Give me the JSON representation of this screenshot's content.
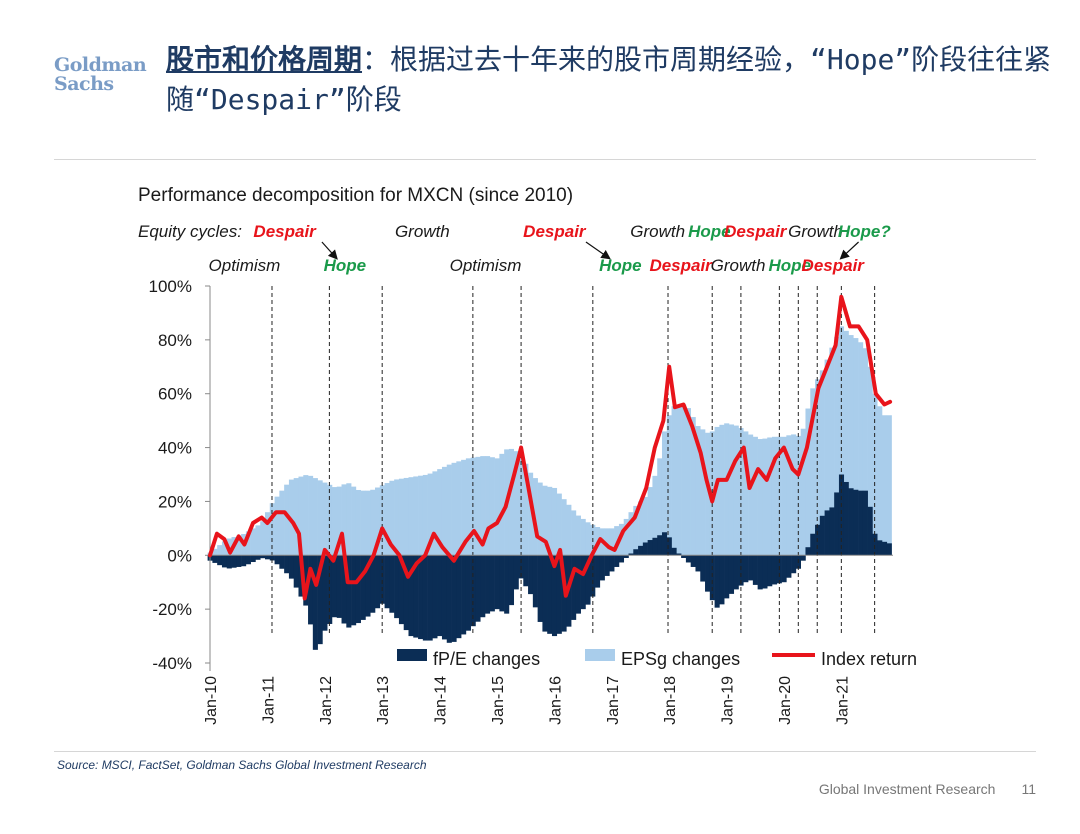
{
  "logo": {
    "line1": "Goldman",
    "line2": "Sachs"
  },
  "slide": {
    "title_highlight": "股市和价格周期",
    "title_rest": "：根据过去十年来的股市周期经验，“Hope”阶段往往紧随“Despair”阶段",
    "source": "Source: MSCI, FactSet, Goldman Sachs Global Investment Research",
    "footer_text": "Global Investment Research",
    "page_number": "11"
  },
  "colors": {
    "fpe": "#0b2d55",
    "eps": "#a9cdeb",
    "index": "#e8141b",
    "despair": "#e8141b",
    "hope": "#1a9a4a",
    "text": "#1a1a1a"
  },
  "chart_data": {
    "type": "bar",
    "title": "Performance decomposition for MXCN (since 2010)",
    "ylim": [
      -40,
      100
    ],
    "ytick_labels": [
      "100%",
      "80%",
      "60%",
      "40%",
      "20%",
      "0%",
      "-20%",
      "-40%"
    ],
    "x_start": 2010.0,
    "x_end": 2021.9,
    "xtick_labels": [
      "Jan-10",
      "Jan-11",
      "Jan-12",
      "Jan-13",
      "Jan-14",
      "Jan-15",
      "Jan-16",
      "Jan-17",
      "Jan-18",
      "Jan-19",
      "Jan-20",
      "Jan-21"
    ],
    "legend": [
      "fP/E changes",
      "EPSg changes",
      "Index return"
    ],
    "cycle_prefix": "Equity cycles:",
    "cycles_row1": [
      {
        "label": "Despair",
        "phase": "despair",
        "t": 2011.3
      },
      {
        "label": "Growth",
        "phase": "growth",
        "t": 2013.7
      },
      {
        "label": "Despair",
        "phase": "despair",
        "t": 2016.0
      },
      {
        "label": "Growth",
        "phase": "growth",
        "t": 2017.8
      },
      {
        "label": "Hope",
        "phase": "hope",
        "t": 2018.7
      },
      {
        "label": "Despair",
        "phase": "despair",
        "t": 2019.5
      },
      {
        "label": "Growth",
        "phase": "growth",
        "t": 2020.55
      },
      {
        "label": "Hope?",
        "phase": "hope",
        "t": 2021.4
      }
    ],
    "cycles_row2": [
      {
        "label": "Optimism",
        "phase": "growth",
        "t": 2010.6
      },
      {
        "label": "Hope",
        "phase": "hope",
        "t": 2012.35
      },
      {
        "label": "Optimism",
        "phase": "growth",
        "t": 2014.8
      },
      {
        "label": "Hope",
        "phase": "hope",
        "t": 2017.15
      },
      {
        "label": "Despair",
        "phase": "despair",
        "t": 2018.2
      },
      {
        "label": "Growth",
        "phase": "growth",
        "t": 2019.2
      },
      {
        "label": "Hope",
        "phase": "hope",
        "t": 2020.1
      },
      {
        "label": "Despair",
        "phase": "despair",
        "t": 2020.85
      }
    ],
    "cycle_arrows": [
      {
        "from": [
          2011.95,
          1
        ],
        "to": [
          2012.2,
          2
        ]
      },
      {
        "from": [
          2016.55,
          1
        ],
        "to": [
          2016.95,
          2
        ]
      },
      {
        "from": [
          2021.3,
          1
        ],
        "to": [
          2021.0,
          2
        ]
      }
    ],
    "cycle_dividers": [
      2011.08,
      2012.08,
      2013.0,
      2014.58,
      2015.42,
      2016.67,
      2017.98,
      2018.75,
      2019.25,
      2019.92,
      2020.25,
      2020.58,
      2021.0,
      2021.58
    ],
    "fpe_changes": [
      [
        2010.0,
        -2
      ],
      [
        2010.3,
        -5
      ],
      [
        2010.6,
        -4
      ],
      [
        2010.9,
        -1
      ],
      [
        2011.1,
        -2
      ],
      [
        2011.4,
        -8
      ],
      [
        2011.7,
        -20
      ],
      [
        2011.85,
        -37
      ],
      [
        2012.0,
        -28
      ],
      [
        2012.2,
        -22
      ],
      [
        2012.4,
        -27
      ],
      [
        2012.6,
        -25
      ],
      [
        2012.8,
        -22
      ],
      [
        2013.0,
        -18
      ],
      [
        2013.2,
        -22
      ],
      [
        2013.5,
        -30
      ],
      [
        2013.8,
        -32
      ],
      [
        2014.0,
        -30
      ],
      [
        2014.2,
        -33
      ],
      [
        2014.5,
        -28
      ],
      [
        2014.8,
        -22
      ],
      [
        2015.0,
        -20
      ],
      [
        2015.2,
        -22
      ],
      [
        2015.4,
        -8
      ],
      [
        2015.6,
        -15
      ],
      [
        2015.8,
        -28
      ],
      [
        2016.0,
        -30
      ],
      [
        2016.2,
        -28
      ],
      [
        2016.4,
        -22
      ],
      [
        2016.6,
        -18
      ],
      [
        2016.8,
        -10
      ],
      [
        2017.0,
        -6
      ],
      [
        2017.2,
        -2
      ],
      [
        2017.4,
        2
      ],
      [
        2017.6,
        5
      ],
      [
        2017.8,
        7
      ],
      [
        2017.95,
        9
      ],
      [
        2018.1,
        2
      ],
      [
        2018.3,
        -2
      ],
      [
        2018.5,
        -6
      ],
      [
        2018.7,
        -15
      ],
      [
        2018.85,
        -20
      ],
      [
        2019.0,
        -16
      ],
      [
        2019.2,
        -12
      ],
      [
        2019.4,
        -9
      ],
      [
        2019.6,
        -13
      ],
      [
        2019.8,
        -11
      ],
      [
        2020.0,
        -10
      ],
      [
        2020.15,
        -7
      ],
      [
        2020.3,
        -4
      ],
      [
        2020.5,
        8
      ],
      [
        2020.7,
        16
      ],
      [
        2020.85,
        18
      ],
      [
        2021.0,
        30
      ],
      [
        2021.15,
        25
      ],
      [
        2021.3,
        24
      ],
      [
        2021.45,
        24
      ],
      [
        2021.6,
        6
      ],
      [
        2021.75,
        5
      ],
      [
        2021.9,
        4
      ]
    ],
    "eps_changes": [
      [
        2010.0,
        1
      ],
      [
        2010.3,
        6
      ],
      [
        2010.6,
        8
      ],
      [
        2010.9,
        12
      ],
      [
        2011.1,
        20
      ],
      [
        2011.4,
        28
      ],
      [
        2011.7,
        30
      ],
      [
        2012.0,
        27
      ],
      [
        2012.2,
        25
      ],
      [
        2012.4,
        27
      ],
      [
        2012.6,
        24
      ],
      [
        2012.8,
        24
      ],
      [
        2013.0,
        26
      ],
      [
        2013.2,
        28
      ],
      [
        2013.5,
        29
      ],
      [
        2013.8,
        30
      ],
      [
        2014.0,
        32
      ],
      [
        2014.2,
        34
      ],
      [
        2014.5,
        36
      ],
      [
        2014.8,
        37
      ],
      [
        2015.0,
        36
      ],
      [
        2015.2,
        40
      ],
      [
        2015.4,
        38
      ],
      [
        2015.6,
        30
      ],
      [
        2015.8,
        26
      ],
      [
        2016.0,
        25
      ],
      [
        2016.2,
        20
      ],
      [
        2016.4,
        15
      ],
      [
        2016.6,
        12
      ],
      [
        2016.8,
        10
      ],
      [
        2017.0,
        10
      ],
      [
        2017.2,
        12
      ],
      [
        2017.4,
        18
      ],
      [
        2017.6,
        22
      ],
      [
        2017.8,
        32
      ],
      [
        2017.95,
        50
      ],
      [
        2018.1,
        56
      ],
      [
        2018.3,
        56
      ],
      [
        2018.5,
        48
      ],
      [
        2018.7,
        45
      ],
      [
        2018.85,
        48
      ],
      [
        2019.0,
        49
      ],
      [
        2019.2,
        48
      ],
      [
        2019.4,
        45
      ],
      [
        2019.6,
        43
      ],
      [
        2019.8,
        44
      ],
      [
        2020.0,
        44
      ],
      [
        2020.15,
        45
      ],
      [
        2020.3,
        44
      ],
      [
        2020.5,
        62
      ],
      [
        2020.7,
        70
      ],
      [
        2020.85,
        78
      ],
      [
        2021.0,
        85
      ],
      [
        2021.15,
        82
      ],
      [
        2021.3,
        80
      ],
      [
        2021.45,
        76
      ],
      [
        2021.6,
        58
      ],
      [
        2021.75,
        52
      ],
      [
        2021.9,
        52
      ]
    ],
    "index_return": [
      [
        2010.0,
        0
      ],
      [
        2010.12,
        8
      ],
      [
        2010.25,
        6
      ],
      [
        2010.35,
        1
      ],
      [
        2010.5,
        7
      ],
      [
        2010.6,
        4
      ],
      [
        2010.75,
        12
      ],
      [
        2010.9,
        14
      ],
      [
        2011.0,
        12
      ],
      [
        2011.15,
        16
      ],
      [
        2011.3,
        16
      ],
      [
        2011.45,
        12
      ],
      [
        2011.55,
        8
      ],
      [
        2011.65,
        -16
      ],
      [
        2011.75,
        -5
      ],
      [
        2011.85,
        -11
      ],
      [
        2012.0,
        2
      ],
      [
        2012.15,
        -2
      ],
      [
        2012.3,
        8
      ],
      [
        2012.4,
        -10
      ],
      [
        2012.55,
        -10
      ],
      [
        2012.7,
        -6
      ],
      [
        2012.85,
        0
      ],
      [
        2013.0,
        10
      ],
      [
        2013.15,
        4
      ],
      [
        2013.3,
        0
      ],
      [
        2013.45,
        -8
      ],
      [
        2013.6,
        -3
      ],
      [
        2013.75,
        0
      ],
      [
        2013.9,
        8
      ],
      [
        2014.05,
        3
      ],
      [
        2014.25,
        -2
      ],
      [
        2014.45,
        5
      ],
      [
        2014.6,
        9
      ],
      [
        2014.75,
        4
      ],
      [
        2014.85,
        10
      ],
      [
        2015.0,
        12
      ],
      [
        2015.15,
        18
      ],
      [
        2015.3,
        30
      ],
      [
        2015.42,
        40
      ],
      [
        2015.55,
        25
      ],
      [
        2015.7,
        7
      ],
      [
        2015.85,
        5
      ],
      [
        2016.0,
        -4
      ],
      [
        2016.1,
        2
      ],
      [
        2016.2,
        -15
      ],
      [
        2016.35,
        -5
      ],
      [
        2016.5,
        -7
      ],
      [
        2016.65,
        0
      ],
      [
        2016.8,
        6
      ],
      [
        2016.95,
        3
      ],
      [
        2017.05,
        2
      ],
      [
        2017.2,
        9
      ],
      [
        2017.4,
        14
      ],
      [
        2017.6,
        25
      ],
      [
        2017.75,
        40
      ],
      [
        2017.9,
        50
      ],
      [
        2018.0,
        70
      ],
      [
        2018.1,
        55
      ],
      [
        2018.25,
        56
      ],
      [
        2018.4,
        48
      ],
      [
        2018.55,
        38
      ],
      [
        2018.65,
        28
      ],
      [
        2018.75,
        20
      ],
      [
        2018.85,
        28
      ],
      [
        2019.0,
        28
      ],
      [
        2019.15,
        35
      ],
      [
        2019.3,
        40
      ],
      [
        2019.4,
        25
      ],
      [
        2019.55,
        32
      ],
      [
        2019.7,
        28
      ],
      [
        2019.85,
        36
      ],
      [
        2020.0,
        40
      ],
      [
        2020.15,
        32
      ],
      [
        2020.25,
        30
      ],
      [
        2020.4,
        40
      ],
      [
        2020.6,
        62
      ],
      [
        2020.75,
        70
      ],
      [
        2020.9,
        78
      ],
      [
        2021.0,
        96
      ],
      [
        2021.15,
        85
      ],
      [
        2021.3,
        85
      ],
      [
        2021.45,
        80
      ],
      [
        2021.6,
        60
      ],
      [
        2021.75,
        56
      ],
      [
        2021.85,
        57
      ]
    ]
  }
}
